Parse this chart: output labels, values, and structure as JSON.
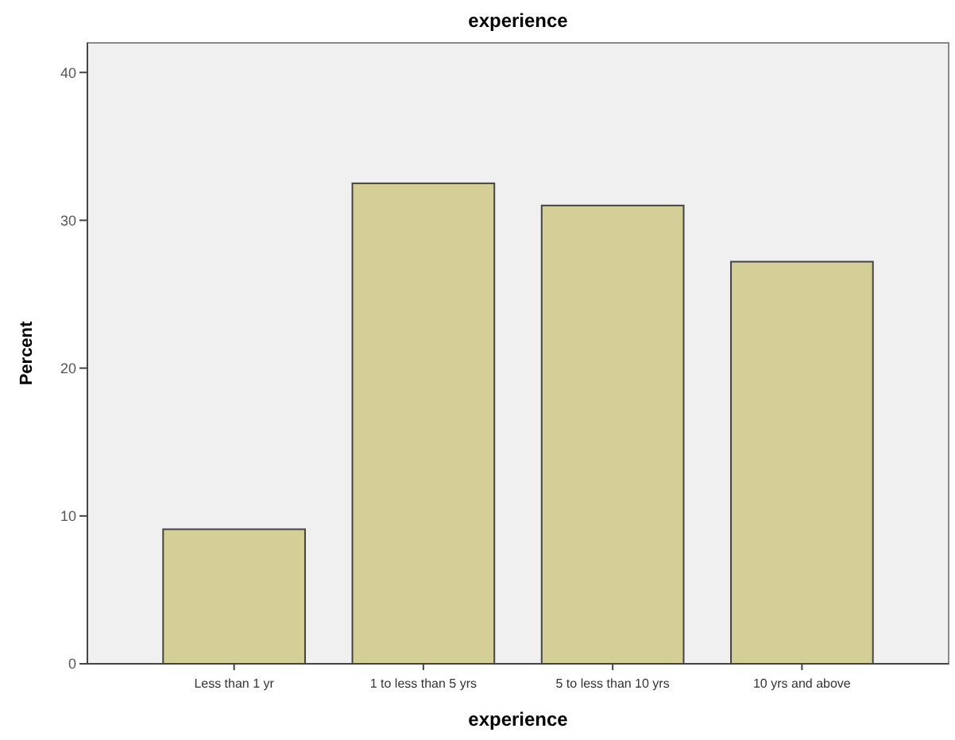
{
  "chart_data": {
    "type": "bar",
    "title": "experience",
    "xlabel": "experience",
    "ylabel": "Percent",
    "categories": [
      "Less than 1 yr",
      "1 to less than 5 yrs",
      "5 to less than 10 yrs",
      "10 yrs and above"
    ],
    "values": [
      9.1,
      32.5,
      31.0,
      27.2
    ],
    "color": "#d3cf96",
    "ylim": [
      0,
      42
    ],
    "yticks": [
      0,
      10,
      20,
      30,
      40
    ],
    "grid": false
  }
}
